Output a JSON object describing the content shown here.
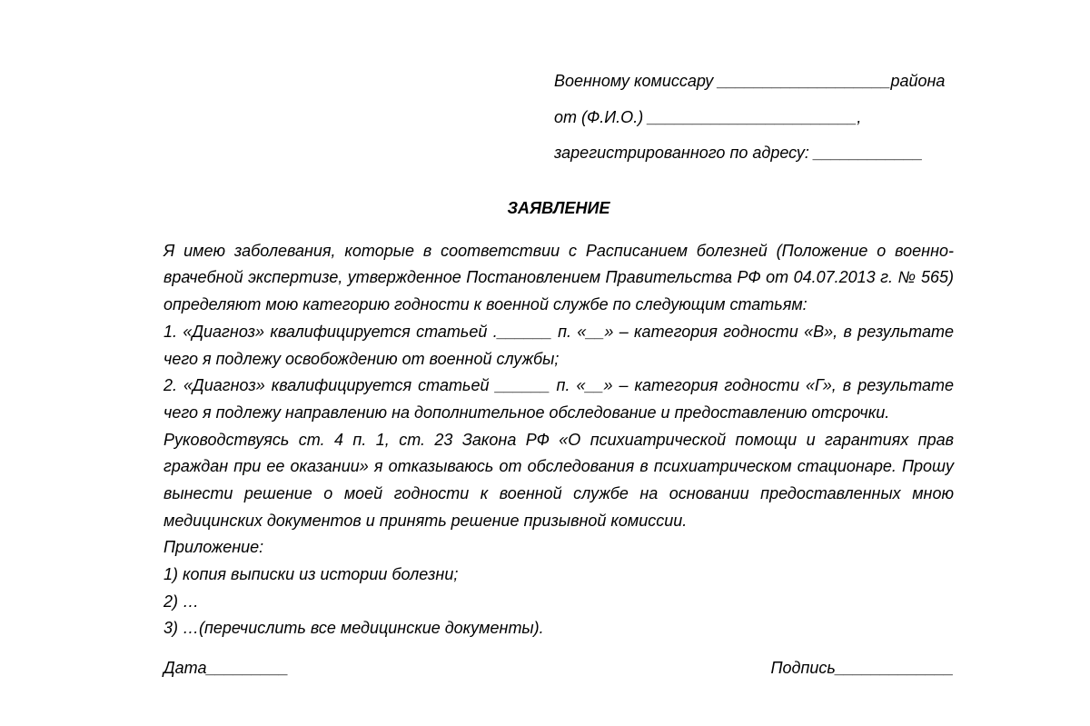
{
  "header": {
    "line1": "Военному комиссару ___________________района",
    "line2": "от (Ф.И.О.) _______________________,",
    "line3": "зарегистрированного по адресу: ____________"
  },
  "title": "ЗАЯВЛЕНИЕ",
  "body": {
    "intro": "Я имею заболевания, которые в соответствии с Расписанием болезней (Положение о военно-врачебной экспертизе, утвержденное Постановлением Правительства РФ от 04.07.2013 г. № 565) определяют мою категорию годности к военной службе по следующим статьям:",
    "item1": "1. «Диагноз» квалифицируется статьей .______ п. «__» – категория годности «В», в результате чего я подлежу освобождению от военной службы;",
    "item2": "2. «Диагноз» квалифицируется статьей ______ п. «__» – категория годности «Г», в результате чего я подлежу направлению на дополнительное обследование и предоставлению отсрочки.",
    "main": "Руководствуясь ст. 4 п. 1, ст. 23 Закона РФ «О психиатрической помощи и гарантиях прав граждан при ее оказании» я отказываюсь от обследования в психиатрическом стационаре. Прошу вынести решение о моей годности к военной службе на основании предоставленных мною медицинских документов и принять решение призывной комиссии.",
    "attachments_label": "Приложение:",
    "att1": "1) копия выписки из истории болезни;",
    "att2": "2) …",
    "att3": "3) …(перечислить все медицинские документы)."
  },
  "footer": {
    "date": "Дата_________",
    "signature": "Подпись_____________"
  },
  "styling": {
    "background_color": "#ffffff",
    "text_color": "#000000",
    "font_family": "Arial",
    "font_style": "italic",
    "font_size_pt": 14,
    "line_height": 1.65
  }
}
